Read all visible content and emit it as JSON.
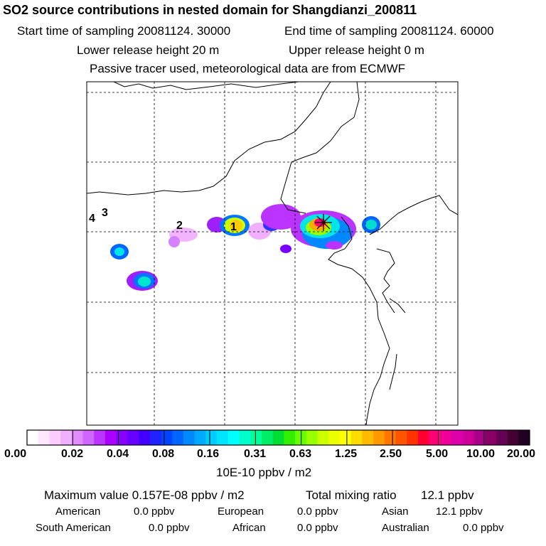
{
  "header": {
    "title": "SO2 source contributions in nested domain for Shangdianzi_200811",
    "start_label": "Start time of sampling 20081124. 30000",
    "end_label": "End time of sampling 20081124. 60000",
    "lower_label": "Lower release height   20 m",
    "upper_label": "Upper release height    0 m",
    "info_label": "Passive tracer used, meteorological data are from ECMWF"
  },
  "map": {
    "markers": [
      "1",
      "2",
      "3",
      "4"
    ],
    "station_symbol": "star-cross-icon"
  },
  "legend": {
    "ticks": [
      "0.00",
      "0.02",
      "0.04",
      "0.08",
      "0.16",
      "0.31",
      "0.63",
      "1.25",
      "2.50",
      "5.00",
      "10.00",
      "20.00"
    ],
    "units": "10E-10 ppbv / m2",
    "colors": [
      "#ffffff",
      "#ffe6ff",
      "#ffccff",
      "#f0b0ff",
      "#e28cff",
      "#d066ff",
      "#bb33ff",
      "#aa00ff",
      "#8800ff",
      "#6600ff",
      "#4400ff",
      "#2222ff",
      "#0044ff",
      "#0066ff",
      "#0088ff",
      "#00aaff",
      "#00ccff",
      "#00e5ff",
      "#00ffff",
      "#00ffcc",
      "#00ff99",
      "#00ee66",
      "#00dd33",
      "#33ee00",
      "#66ff00",
      "#99ff00",
      "#ccff00",
      "#eeff00",
      "#ffff00",
      "#ffdd00",
      "#ffbb00",
      "#ff9900",
      "#ff7700",
      "#ff5500",
      "#ff3300",
      "#ff0033",
      "#ff0077",
      "#ee0099",
      "#dd00aa",
      "#cc0099",
      "#aa0088",
      "#880066",
      "#660055",
      "#440033",
      "#220022"
    ]
  },
  "stats": {
    "max_label": "Maximum value  0.157E-08 ppbv / m2",
    "total_label": "Total mixing ratio",
    "total_value": "12.1 ppbv",
    "regions": [
      {
        "name": "American",
        "value": "0.0 ppbv"
      },
      {
        "name": "European",
        "value": "0.0 ppbv"
      },
      {
        "name": "Asian",
        "value": "12.1 ppbv"
      },
      {
        "name": "South American",
        "value": "0.0 ppbv"
      },
      {
        "name": "African",
        "value": "0.0 ppbv"
      },
      {
        "name": "Australian",
        "value": "0.0 ppbv"
      }
    ]
  }
}
